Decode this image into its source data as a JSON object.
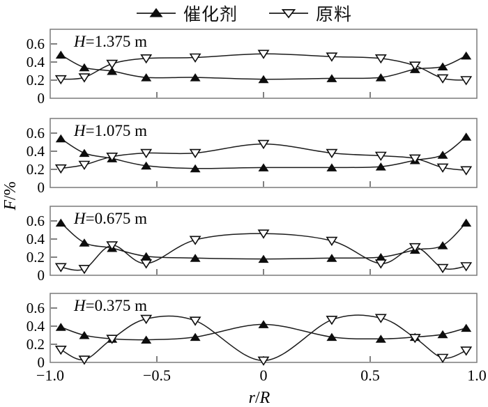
{
  "legend": [
    {
      "label": "催化剂",
      "series": "catalyst",
      "marker": "filled-triangle-up"
    },
    {
      "label": "原料",
      "series": "feed",
      "marker": "open-triangle-down"
    }
  ],
  "axes": {
    "x_label": "r/R",
    "y_label": "F/%",
    "x_tick_labels": [
      "−1.0",
      "−0.5",
      "0",
      "0.5",
      "1.0"
    ],
    "x_tick_values": [
      -1,
      -0.5,
      0,
      0.5,
      1
    ],
    "y_tick_labels": [
      "0",
      "0.2",
      "0.4",
      "0.6"
    ],
    "y_tick_values": [
      0,
      0.2,
      0.4,
      0.6
    ]
  },
  "colors": {
    "curve": "#1b1b1b",
    "frame": "#7a7a7a",
    "tick": "#4a4a4a",
    "marker_fill": "#0d0d0d",
    "marker_open_fill": "#ffffff",
    "text": "#000000",
    "background": "#ffffff"
  },
  "chart_data": {
    "type": "line",
    "title": "",
    "xlabel": "r/R",
    "ylabel": "F/%",
    "x_range": [
      -1,
      1
    ],
    "y_range": [
      0,
      0.76
    ],
    "grid": false,
    "legend_position": "top-center",
    "x": [
      -0.95,
      -0.84,
      -0.71,
      -0.55,
      -0.32,
      0,
      0.32,
      0.55,
      0.71,
      0.84,
      0.95
    ],
    "panels": [
      {
        "label": "H=1.375 m",
        "series": [
          {
            "name": "催化剂",
            "marker": "filled-triangle-up",
            "values": [
              0.48,
              0.34,
              0.3,
              0.23,
              0.23,
              0.21,
              0.22,
              0.23,
              0.32,
              0.35,
              0.47
            ]
          },
          {
            "name": "原料",
            "marker": "open-triangle-down",
            "values": [
              0.21,
              0.23,
              0.38,
              0.44,
              0.45,
              0.49,
              0.46,
              0.44,
              0.36,
              0.22,
              0.2
            ]
          }
        ]
      },
      {
        "label": "H=1.075 m",
        "series": [
          {
            "name": "催化剂",
            "marker": "filled-triangle-up",
            "values": [
              0.54,
              0.38,
              0.32,
              0.24,
              0.21,
              0.22,
              0.22,
              0.23,
              0.3,
              0.36,
              0.56
            ]
          },
          {
            "name": "原料",
            "marker": "open-triangle-down",
            "values": [
              0.21,
              0.25,
              0.34,
              0.38,
              0.38,
              0.48,
              0.38,
              0.35,
              0.32,
              0.22,
              0.19
            ]
          }
        ]
      },
      {
        "label": "H=0.675 m",
        "series": [
          {
            "name": "催化剂",
            "marker": "filled-triangle-up",
            "values": [
              0.58,
              0.36,
              0.3,
              0.21,
              0.19,
              0.18,
              0.19,
              0.2,
              0.28,
              0.33,
              0.58
            ]
          },
          {
            "name": "原料",
            "marker": "open-triangle-down",
            "values": [
              0.09,
              0.07,
              0.33,
              0.13,
              0.39,
              0.46,
              0.38,
              0.13,
              0.31,
              0.08,
              0.1
            ]
          }
        ]
      },
      {
        "label": "H=0.375 m",
        "series": [
          {
            "name": "催化剂",
            "marker": "filled-triangle-up",
            "values": [
              0.39,
              0.3,
              0.26,
              0.25,
              0.28,
              0.42,
              0.28,
              0.26,
              0.28,
              0.31,
              0.38
            ]
          },
          {
            "name": "原料",
            "marker": "open-triangle-down",
            "values": [
              0.14,
              0.03,
              0.26,
              0.48,
              0.46,
              0.02,
              0.47,
              0.49,
              0.27,
              0.05,
              0.13
            ]
          }
        ]
      }
    ]
  }
}
